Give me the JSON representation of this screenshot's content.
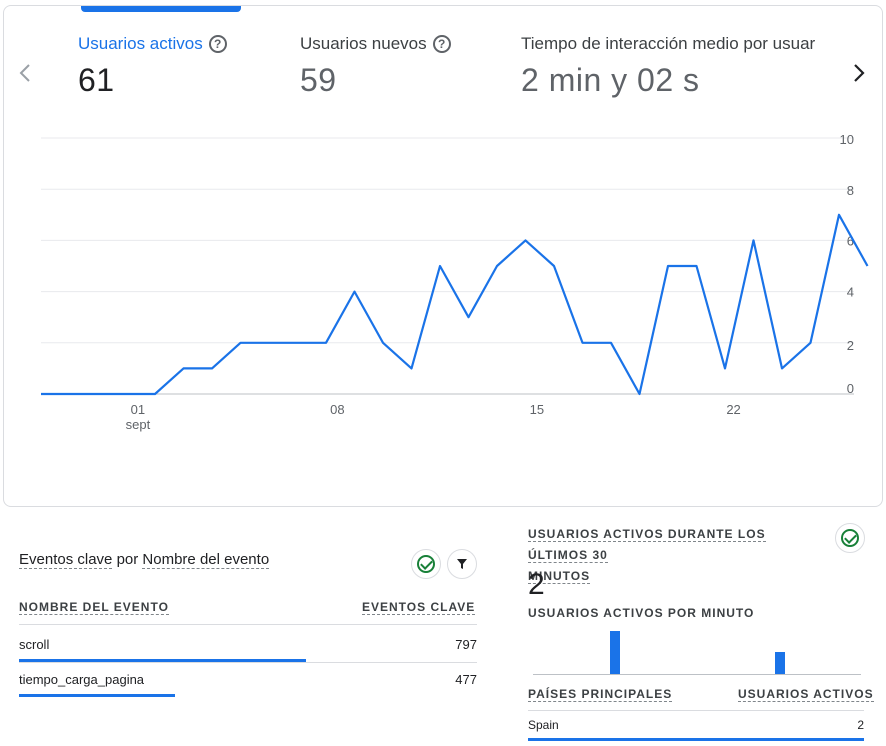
{
  "metrics": [
    {
      "label": "Usuarios activos",
      "value": "61",
      "help": "?"
    },
    {
      "label": "Usuarios nuevos",
      "value": "59",
      "help": "?"
    },
    {
      "label": "Tiempo de interacción medio por usuar",
      "value": "2 min y 02 s"
    }
  ],
  "nav": {
    "prev_icon": "chevron-left-icon",
    "next_icon": "chevron-right-icon"
  },
  "chart_data": {
    "type": "line",
    "series": [
      {
        "values": [
          0,
          0,
          0,
          0,
          0,
          1,
          1,
          2,
          2,
          2,
          2,
          4,
          2,
          1,
          5,
          3,
          5,
          6,
          5,
          2,
          2,
          0,
          5,
          5,
          1,
          6,
          1,
          2,
          7,
          5
        ]
      }
    ],
    "x_ticks": [
      "01",
      "08",
      "15",
      "22"
    ],
    "x_subtick": "sept",
    "y_ticks": [
      "10",
      "8",
      "6",
      "4",
      "2",
      "0"
    ],
    "ylim": [
      0,
      10
    ],
    "color": "#1a73e8",
    "grid": true
  },
  "events": {
    "title_prefix": "Eventos clave",
    "title_by": "por",
    "title_dim": "Nombre del evento",
    "col_name": "NOMBRE DEL EVENTO",
    "col_value": "EVENTOS CLAVE",
    "rows": [
      {
        "name": "scroll",
        "value": "797",
        "share": 0.727
      },
      {
        "name": "tiempo_carga_pagina",
        "value": "477",
        "share": 0.395
      }
    ]
  },
  "realtime": {
    "title_line1": "USUARIOS ACTIVOS DURANTE LOS ÚLTIMOS 30",
    "title_line2": "MINUTOS",
    "value": "2",
    "per_minute_label": "USUARIOS ACTIVOS POR MINUTO",
    "per_minute_values": [
      0,
      0,
      0,
      0,
      0,
      0,
      0,
      1,
      0,
      0,
      0,
      0,
      0,
      0,
      0,
      0,
      0,
      0,
      0,
      0,
      0,
      0,
      0.5,
      0,
      0,
      0,
      0,
      0,
      0,
      0
    ],
    "col_country": "PAÍSES PRINCIPALES",
    "col_users": "USUARIOS ACTIVOS",
    "rows": [
      {
        "country": "Spain",
        "users": "2"
      }
    ]
  }
}
